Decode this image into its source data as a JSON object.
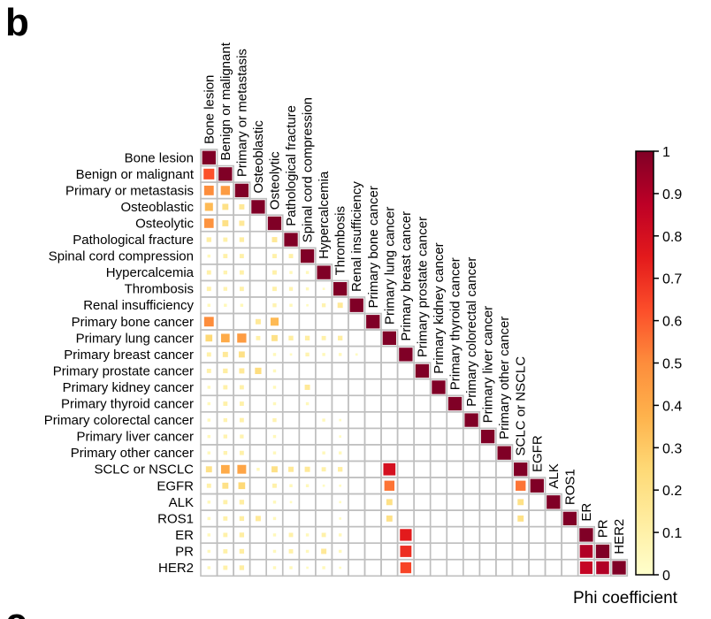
{
  "figure": {
    "panel_letter": "b",
    "next_panel_letter": "c"
  },
  "chart_data": {
    "type": "heatmap",
    "shape": "lower-triangular correlation matrix",
    "variables": [
      "Bone lesion",
      "Benign or malignant",
      "Primary or metastasis",
      "Osteoblastic",
      "Osteolytic",
      "Pathological fracture",
      "Spinal cord compression",
      "Hypercalcemia",
      "Thrombosis",
      "Renal insufficiency",
      "Primary bone cancer",
      "Primary lung cancer",
      "Primary breast cancer",
      "Primary prostate cancer",
      "Primary kidney cancer",
      "Primary thyroid cancer",
      "Primary colorectal cancer",
      "Primary liver cancer",
      "Primary other cancer",
      "SCLC or NSCLC",
      "EGFR",
      "ALK",
      "ROS1",
      "ER",
      "PR",
      "HER2"
    ],
    "values": [
      [
        1
      ],
      [
        0.62,
        1
      ],
      [
        0.5,
        0.45,
        1
      ],
      [
        0.35,
        0.2,
        0.15,
        1
      ],
      [
        0.48,
        0.2,
        0.15,
        0,
        1
      ],
      [
        0.12,
        0.1,
        0.12,
        0,
        0.15,
        1
      ],
      [
        0.05,
        0.1,
        0.1,
        0,
        0.1,
        0.1,
        1
      ],
      [
        0.1,
        0.08,
        0.1,
        0,
        0.1,
        0.05,
        0.05,
        1
      ],
      [
        0.1,
        0.08,
        0.1,
        0,
        0.1,
        0.08,
        0.05,
        0.03,
        1
      ],
      [
        0.05,
        0.05,
        0.05,
        0,
        0.08,
        0.05,
        0.03,
        0.08,
        0.15,
        1
      ],
      [
        0.5,
        0,
        0,
        0.15,
        0.35,
        0,
        0,
        0,
        0,
        0,
        1
      ],
      [
        0.25,
        0.4,
        0.45,
        0.1,
        0.2,
        0.12,
        0.12,
        0.1,
        0.12,
        0,
        0,
        1
      ],
      [
        0.1,
        0.15,
        0.2,
        0,
        0.05,
        0.03,
        0.08,
        0.05,
        0.05,
        0.03,
        0,
        0,
        1
      ],
      [
        0.1,
        0.12,
        0.15,
        0.22,
        0.05,
        0,
        0,
        0,
        0,
        0,
        0,
        0,
        0,
        1
      ],
      [
        0.05,
        0.1,
        0.1,
        0,
        0.05,
        0,
        0.15,
        0,
        0,
        0,
        0,
        0,
        0,
        0,
        1
      ],
      [
        0.05,
        0.1,
        0.1,
        0,
        0.05,
        0,
        0.05,
        0,
        0,
        0,
        0,
        0,
        0,
        0,
        0,
        1
      ],
      [
        0.05,
        0.08,
        0.1,
        0,
        0.08,
        0,
        0,
        0.05,
        0.03,
        0,
        0,
        0,
        0,
        0,
        0,
        0,
        1
      ],
      [
        0.05,
        0.08,
        0.08,
        0,
        0.05,
        0,
        0,
        0,
        0.03,
        0,
        0,
        0,
        0,
        0,
        0,
        0,
        0,
        1
      ],
      [
        0.05,
        0.08,
        0.1,
        0,
        0.05,
        0,
        0,
        0.05,
        0.05,
        0,
        0,
        0,
        0,
        0,
        0,
        0,
        0,
        0,
        1
      ],
      [
        0.2,
        0.4,
        0.42,
        0.05,
        0.2,
        0.15,
        0.15,
        0.1,
        0.12,
        0,
        0,
        0.8,
        0,
        0,
        0,
        0,
        0,
        0,
        0,
        1
      ],
      [
        0.1,
        0.2,
        0.25,
        0,
        0.1,
        0.05,
        0.05,
        0.03,
        0.03,
        0,
        0,
        0.55,
        0,
        0,
        0,
        0,
        0,
        0,
        0,
        0.55,
        1
      ],
      [
        0.05,
        0.1,
        0.12,
        0,
        0.05,
        0.03,
        0,
        0,
        0.03,
        0,
        0,
        0.2,
        0,
        0,
        0,
        0,
        0,
        0,
        0,
        0.2,
        0,
        1
      ],
      [
        0.05,
        0.1,
        0.12,
        0.15,
        0.05,
        0,
        0,
        0,
        0.03,
        0,
        0,
        0.2,
        0,
        0,
        0,
        0,
        0,
        0,
        0,
        0.2,
        0,
        0,
        1
      ],
      [
        0.05,
        0.1,
        0.12,
        0,
        0.05,
        0.1,
        0.05,
        0.1,
        0.05,
        0,
        0,
        0,
        0.75,
        0,
        0,
        0,
        0,
        0,
        0,
        0,
        0,
        0,
        0,
        1
      ],
      [
        0.05,
        0.1,
        0.12,
        0,
        0.05,
        0.1,
        0.05,
        0.15,
        0.05,
        0,
        0,
        0,
        0.7,
        0,
        0,
        0,
        0,
        0,
        0,
        0,
        0,
        0,
        0,
        0.9,
        1
      ],
      [
        0.05,
        0.1,
        0.12,
        0,
        0.05,
        0.05,
        0.03,
        0.05,
        0.03,
        0,
        0,
        0,
        0.65,
        0,
        0,
        0,
        0,
        0,
        0,
        0,
        0,
        0,
        0,
        0.85,
        0.9,
        1
      ]
    ],
    "value_range": [
      0,
      1
    ],
    "colormap": "YlOrRd",
    "colorbar": {
      "title": "Phi coefficient",
      "ticks": [
        "0",
        "0.1",
        "0.2",
        "0.3",
        "0.4",
        "0.5",
        "0.6",
        "0.7",
        "0.8",
        "0.9",
        "1"
      ],
      "position": "right"
    },
    "cell_size_encodes_value": true,
    "grid": true,
    "grid_color": "#bfbfbf"
  }
}
